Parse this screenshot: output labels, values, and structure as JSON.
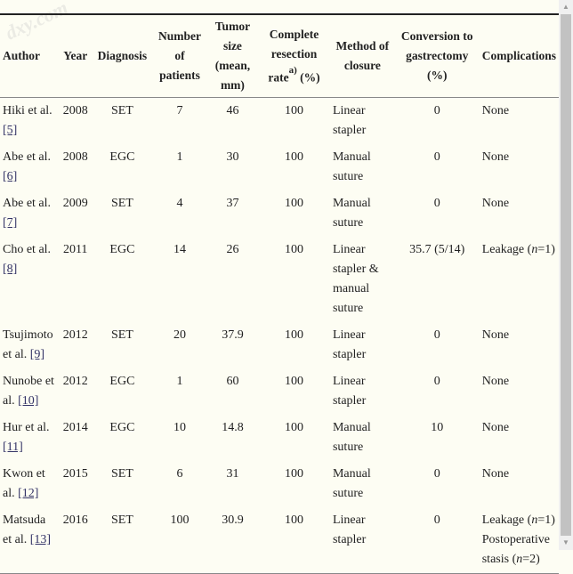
{
  "watermark": "dxy.com",
  "headers": [
    "Author",
    "Year",
    "Diagnosis",
    "Number of patients",
    "Tumor size (mean, mm)",
    "Complete resection rate",
    "(%)",
    "Method of closure",
    "Conversion to gastrectomy (%)",
    "Complications"
  ],
  "footnote_mark": "a)",
  "rows": [
    {
      "author": "Hiki et al.",
      "ref": "[5]",
      "year": "2008",
      "diag": "SET",
      "n": "7",
      "size": "46",
      "rate": "100",
      "method": "Linear stapler",
      "conv": "0",
      "comp": "None"
    },
    {
      "author": "Abe et al.",
      "ref": "[6]",
      "year": "2008",
      "diag": "EGC",
      "n": "1",
      "size": "30",
      "rate": "100",
      "method": "Manual suture",
      "conv": "0",
      "comp": "None"
    },
    {
      "author": "Abe et al.",
      "ref": "[7]",
      "year": "2009",
      "diag": "SET",
      "n": "4",
      "size": "37",
      "rate": "100",
      "method": "Manual suture",
      "conv": "0",
      "comp": "None"
    },
    {
      "author": "Cho et al.",
      "ref": "[8]",
      "year": "2011",
      "diag": "EGC",
      "n": "14",
      "size": "26",
      "rate": "100",
      "method": "Linear stapler & manual suture",
      "conv": "35.7 (5/14)",
      "comp": "Leakage (n=1)"
    },
    {
      "author": "Tsujimoto et al.",
      "ref": "[9]",
      "year": "2012",
      "diag": "SET",
      "n": "20",
      "size": "37.9",
      "rate": "100",
      "method": "Linear stapler",
      "conv": "0",
      "comp": "None"
    },
    {
      "author": "Nunobe et al.",
      "ref": "[10]",
      "year": "2012",
      "diag": "EGC",
      "n": "1",
      "size": "60",
      "rate": "100",
      "method": "Linear stapler",
      "conv": "0",
      "comp": "None"
    },
    {
      "author": "Hur et al.",
      "ref": "[11]",
      "year": "2014",
      "diag": "EGC",
      "n": "10",
      "size": "14.8",
      "rate": "100",
      "method": "Manual suture",
      "conv": "10",
      "comp": "None"
    },
    {
      "author": "Kwon et al.",
      "ref": "[12]",
      "year": "2015",
      "diag": "SET",
      "n": "6",
      "size": "31",
      "rate": "100",
      "method": "Manual suture",
      "conv": "0",
      "comp": "None"
    },
    {
      "author": "Matsuda et al.",
      "ref": "[13]",
      "year": "2016",
      "diag": "SET",
      "n": "100",
      "size": "30.9",
      "rate": "100",
      "method": "Linear stapler",
      "conv": "0",
      "comp": "Leakage (n=1)",
      "comp2": "Postoperative stasis (n=2)"
    }
  ]
}
